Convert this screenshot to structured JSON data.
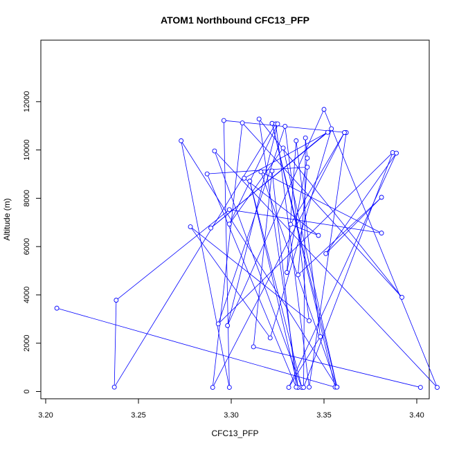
{
  "chart_data": {
    "type": "scatter",
    "title": "ATOM1 Northbound CFC13_PFP",
    "xlabel": "CFC13_PFP",
    "ylabel": "Altitude (m)",
    "xlim": [
      3.2,
      3.41
    ],
    "ylim": [
      0,
      12000
    ],
    "xticks": [
      "3.20",
      "3.25",
      "3.30",
      "3.35",
      "3.40"
    ],
    "yticks": [
      "0",
      "2000",
      "4000",
      "6000",
      "8000",
      "10000",
      "12000"
    ],
    "grid": false,
    "legend": "none",
    "colors": {
      "series": "#0000ff",
      "axis": "#000000"
    },
    "series": [
      {
        "connected": true,
        "points": [
          [
            3.206,
            3450
          ],
          [
            3.356,
            180
          ],
          [
            3.322,
            11100
          ],
          [
            3.357,
            180
          ],
          [
            3.273,
            10380
          ],
          [
            3.299,
            170
          ],
          [
            3.296,
            11220
          ],
          [
            3.362,
            10720
          ],
          [
            3.342,
            180
          ],
          [
            3.324,
            11080
          ],
          [
            3.237,
            180
          ],
          [
            3.238,
            3780
          ],
          [
            3.299,
            7530
          ],
          [
            3.381,
            6560
          ],
          [
            3.316,
            9100
          ],
          [
            3.357,
            180
          ],
          [
            3.328,
            10080
          ],
          [
            3.299,
            6930
          ],
          [
            3.325,
            11080
          ],
          [
            3.298,
            2730
          ],
          [
            3.35,
            11680
          ],
          [
            3.411,
            170
          ],
          [
            3.291,
            9960
          ],
          [
            3.338,
            170
          ],
          [
            3.31,
            8710
          ],
          [
            3.336,
            170
          ],
          [
            3.315,
            11280
          ],
          [
            3.392,
            3900
          ],
          [
            3.306,
            11120
          ],
          [
            3.29,
            170
          ],
          [
            3.361,
            10720
          ],
          [
            3.332,
            6920
          ],
          [
            3.347,
            6460
          ],
          [
            3.307,
            8830
          ],
          [
            3.352,
            10730
          ],
          [
            3.289,
            6770
          ],
          [
            3.354,
            10880
          ],
          [
            3.321,
            2220
          ],
          [
            3.278,
            6820
          ],
          [
            3.342,
            2930
          ],
          [
            3.329,
            10980
          ],
          [
            3.293,
            2800
          ],
          [
            3.387,
            9890
          ],
          [
            3.339,
            170
          ],
          [
            3.34,
            10500
          ],
          [
            3.341,
            9660
          ],
          [
            3.33,
            4930
          ],
          [
            3.335,
            10380
          ],
          [
            3.348,
            2270
          ],
          [
            3.331,
            170
          ],
          [
            3.389,
            9870
          ],
          [
            3.351,
            5710
          ],
          [
            3.381,
            8040
          ],
          [
            3.336,
            4830
          ],
          [
            3.341,
            9290
          ],
          [
            3.287,
            9010
          ],
          [
            3.335,
            180
          ],
          [
            3.322,
            9130
          ],
          [
            3.312,
            1850
          ],
          [
            3.402,
            170
          ]
        ]
      }
    ]
  }
}
